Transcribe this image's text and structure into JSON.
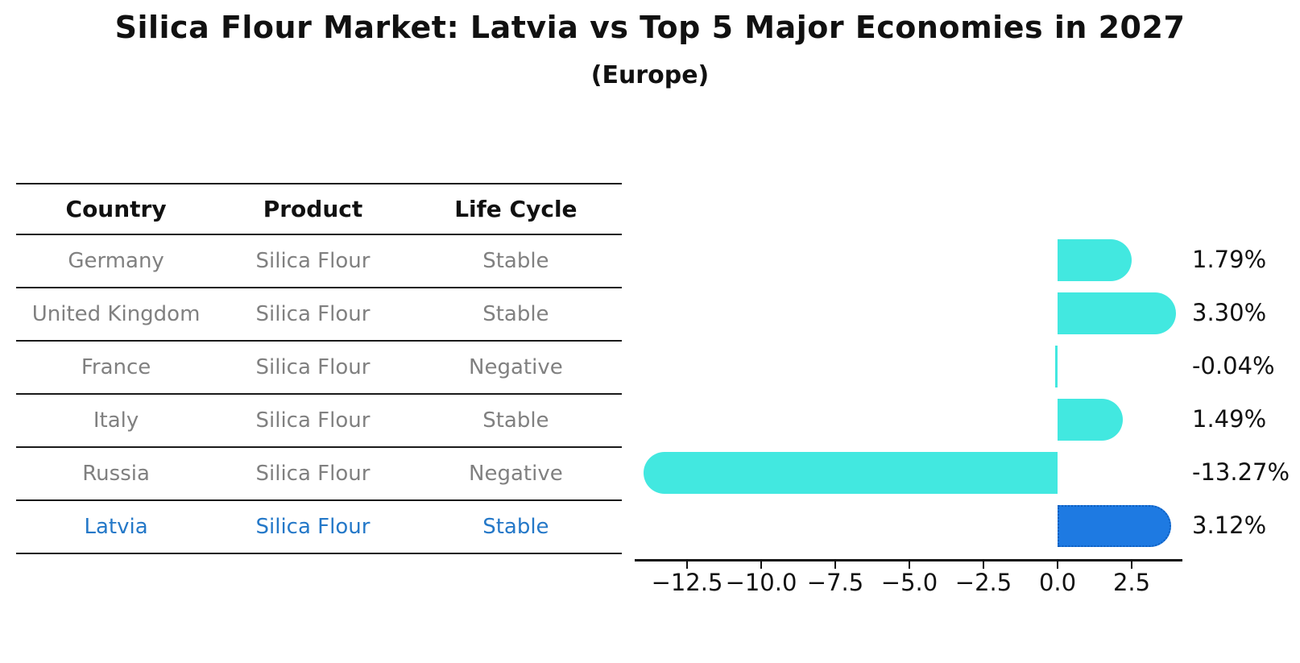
{
  "title": "Silica Flour Market: Latvia vs Top 5 Major Economies in 2027",
  "subtitle": "(Europe)",
  "table": {
    "columns": [
      "Country",
      "Product",
      "Life Cycle"
    ],
    "rows": [
      {
        "country": "Germany",
        "product": "Silica Flour",
        "life_cycle": "Stable",
        "highlight": false
      },
      {
        "country": "United Kingdom",
        "product": "Silica Flour",
        "life_cycle": "Stable",
        "highlight": false
      },
      {
        "country": "France",
        "product": "Silica Flour",
        "life_cycle": "Negative",
        "highlight": false
      },
      {
        "country": "Italy",
        "product": "Silica Flour",
        "life_cycle": "Stable",
        "highlight": false
      },
      {
        "country": "Russia",
        "product": "Silica Flour",
        "life_cycle": "Negative",
        "highlight": false
      },
      {
        "country": "Latvia",
        "product": "Silica Flour",
        "life_cycle": "Stable",
        "highlight": true
      }
    ],
    "text_color": "#808080",
    "highlight_text_color": "#2478C8"
  },
  "chart_data": {
    "type": "bar",
    "orientation": "horizontal",
    "title": "Silica Flour Market: Latvia vs Top 5 Major Economies in 2027",
    "subtitle": "(Europe)",
    "categories": [
      "Germany",
      "United Kingdom",
      "France",
      "Italy",
      "Russia",
      "Latvia"
    ],
    "values": [
      1.79,
      3.3,
      -0.04,
      1.49,
      -13.27,
      3.12
    ],
    "value_labels": [
      "1.79%",
      "3.30%",
      "-0.04%",
      "1.49%",
      "-13.27%",
      "3.12%"
    ],
    "x_ticks": [
      "−12.5",
      "−10.0",
      "−7.5",
      "−5.0",
      "−2.5",
      "0.0",
      "2.5"
    ],
    "x_tick_values": [
      -12.5,
      -10.0,
      -7.5,
      -5.0,
      -2.5,
      0.0,
      2.5
    ],
    "xlim": [
      -14.3,
      4.2
    ],
    "grid": false,
    "legend": null,
    "bar_color": "#42E8E0",
    "highlight_index": 5,
    "highlight_color": "#1E7AE2",
    "highlight_border_color": "#0F5FC0"
  }
}
